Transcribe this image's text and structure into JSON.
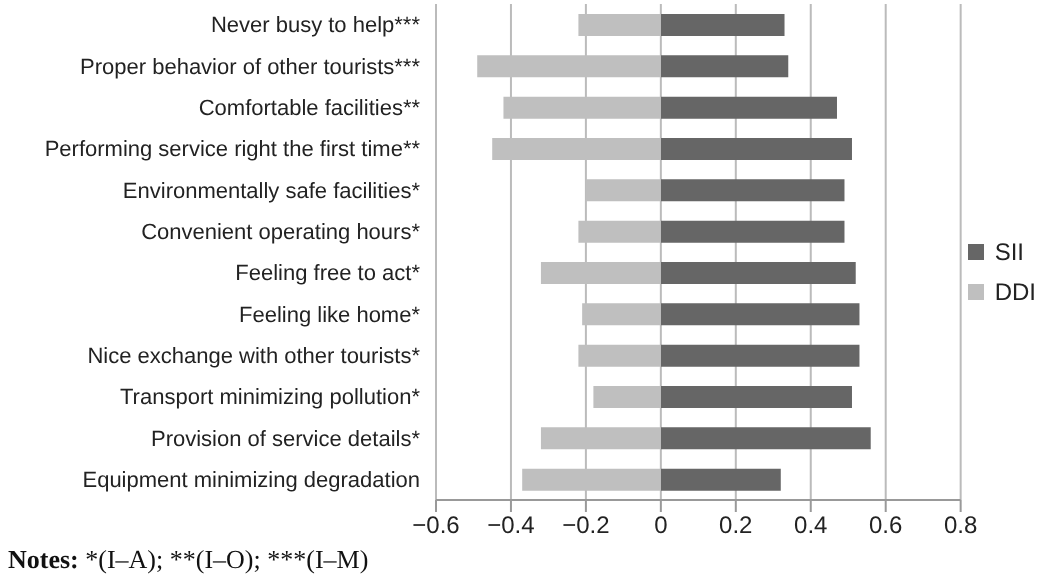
{
  "chart_data": {
    "type": "bar",
    "orientation": "horizontal",
    "stacked": true,
    "categories": [
      "Never busy to help***",
      "Proper behavior of other tourists***",
      "Comfortable facilities**",
      "Performing service right the first time**",
      "Environmentally safe facilities*",
      "Convenient operating hours*",
      "Feeling free to act*",
      "Feeling like home*",
      "Nice exchange with other tourists*",
      "Transport minimizing pollution*",
      "Provision of service details*",
      "Equipment minimizing degradation"
    ],
    "series": [
      {
        "name": "SII",
        "color": "#666666",
        "values": [
          0.33,
          0.34,
          0.47,
          0.51,
          0.49,
          0.49,
          0.52,
          0.53,
          0.53,
          0.51,
          0.56,
          0.32
        ]
      },
      {
        "name": "DDI",
        "color": "#bfbfbf",
        "values": [
          -0.22,
          -0.49,
          -0.42,
          -0.45,
          -0.2,
          -0.22,
          -0.32,
          -0.21,
          -0.22,
          -0.18,
          -0.32,
          -0.37
        ]
      }
    ],
    "xlim": [
      -0.6,
      0.8
    ],
    "xticks": [
      {
        "value": -0.6,
        "label": "−0.6"
      },
      {
        "value": -0.4,
        "label": "−0.4"
      },
      {
        "value": -0.2,
        "label": "−0.2"
      },
      0,
      0.2,
      0.4,
      0.6,
      0.8
    ],
    "grid": "x",
    "legend": "right",
    "annotations": [
      "Notes: *(I–A); **(I–O); ***(I–M)"
    ]
  }
}
